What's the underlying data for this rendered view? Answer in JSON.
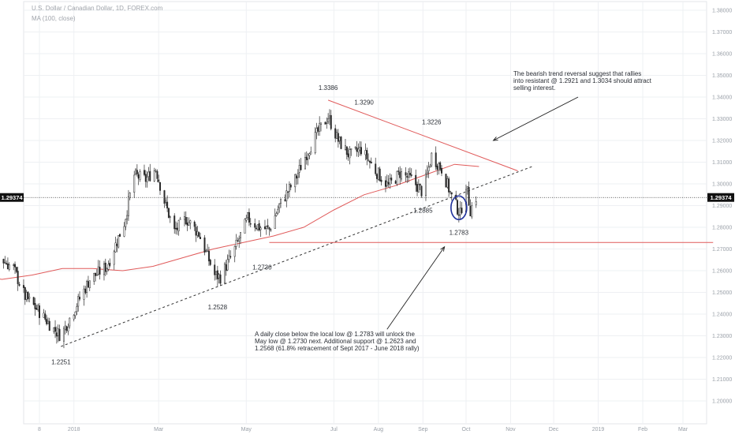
{
  "legend": {
    "symbol_line": "U.S. Dollar / Canadian Dollar, 1D, FOREX.com",
    "ma_line": "MA (100, close)"
  },
  "current_price_label": "1.29374",
  "annotations": {
    "top_note": "The bearish trend reversal suggest that rallies\ninto resistant @ 1.2921 and 1.3034 should attract\nselling interest.",
    "bottom_note": "A daily close below the local low @ 1.2783 will unlock the\nMay low @ 1.2730 next. Additional support @ 1.2623 and\n1.2568 (61.8% retracement of Sept 2017 - June 2018 rally)",
    "levels": [
      {
        "text": "1.3386",
        "date": "2018-06-27",
        "price": 1.3432
      },
      {
        "text": "1.3290",
        "date": "2018-07-22",
        "price": 1.3365
      },
      {
        "text": "1.3226",
        "date": "2018-09-07",
        "price": 1.3275
      },
      {
        "text": "1.2885",
        "date": "2018-09-01",
        "price": 1.2868
      },
      {
        "text": "1.2783",
        "date": "2018-09-26",
        "price": 1.2765
      },
      {
        "text": "1.2730",
        "date": "2018-05-12",
        "price": 1.2605
      },
      {
        "text": "1.2528",
        "date": "2018-04-11",
        "price": 1.2422
      },
      {
        "text": "1.2251",
        "date": "2017-12-23",
        "price": 1.217
      }
    ]
  },
  "colors": {
    "candle": "#2b2b2b",
    "ma": "#e05a5a",
    "resistance_line": "#e05a5a",
    "support_line": "#333333",
    "circle": "#1e2f9c",
    "grid": "#eef0f3",
    "axis_text": "#9aa0a8",
    "price_label_bg": "#111111"
  },
  "chart_data": {
    "type": "candlestick",
    "symbol": "U.S. Dollar / Canadian Dollar, 1D, FOREX.com",
    "indicator": "MA (100, close)",
    "y_axis": {
      "position": "right",
      "ylim": [
        1.1948,
        1.385
      ],
      "tick_labels": [
        "1.38000",
        "1.37000",
        "1.36000",
        "1.35000",
        "1.34000",
        "1.33000",
        "1.32000",
        "1.31000",
        "1.30000",
        "1.29000",
        "1.28000",
        "1.27000",
        "1.26000",
        "1.25000",
        "1.24000",
        "1.23000",
        "1.22000",
        "1.21000",
        "1.20000"
      ]
    },
    "x_axis": {
      "position": "bottom",
      "tick_labels": [
        {
          "label": "8",
          "date": "2017-12-08"
        },
        {
          "label": "2018",
          "date": "2018-01-01"
        },
        {
          "label": "Mar",
          "date": "2018-03-01"
        },
        {
          "label": "May",
          "date": "2018-05-01"
        },
        {
          "label": "Jul",
          "date": "2018-07-01"
        },
        {
          "label": "Aug",
          "date": "2018-08-01"
        },
        {
          "label": "Sep",
          "date": "2018-09-01"
        },
        {
          "label": "Oct",
          "date": "2018-10-01"
        },
        {
          "label": "Nov",
          "date": "2018-11-01"
        },
        {
          "label": "Dec",
          "date": "2018-12-01"
        },
        {
          "label": "2019",
          "date": "2019-01-01"
        },
        {
          "label": "Feb",
          "date": "2019-02-01"
        },
        {
          "label": "Mar",
          "date": "2019-03-01"
        }
      ]
    },
    "close_path": [
      [
        "2017-08-24",
        1.289
      ],
      [
        "2017-09-05",
        1.279
      ],
      [
        "2017-09-18",
        1.276
      ],
      [
        "2017-10-02",
        1.276
      ],
      [
        "2017-10-13",
        1.284
      ],
      [
        "2017-10-27",
        1.278
      ],
      [
        "2017-11-08",
        1.267
      ],
      [
        "2017-11-20",
        1.261
      ],
      [
        "2017-11-28",
        1.248
      ],
      [
        "2017-12-08",
        1.241
      ],
      [
        "2017-12-18",
        1.233
      ],
      [
        "2017-12-23",
        1.23
      ],
      [
        "2018-01-01",
        1.242
      ],
      [
        "2018-01-12",
        1.256
      ],
      [
        "2018-01-24",
        1.262
      ],
      [
        "2018-02-05",
        1.282
      ],
      [
        "2018-02-12",
        1.304
      ],
      [
        "2018-02-20",
        1.302
      ],
      [
        "2018-02-27",
        1.307
      ],
      [
        "2018-03-05",
        1.292
      ],
      [
        "2018-03-12",
        1.278
      ],
      [
        "2018-03-20",
        1.284
      ],
      [
        "2018-03-29",
        1.277
      ],
      [
        "2018-04-09",
        1.258
      ],
      [
        "2018-04-13",
        1.257
      ],
      [
        "2018-04-23",
        1.27
      ],
      [
        "2018-05-02",
        1.284
      ],
      [
        "2018-05-10",
        1.28
      ],
      [
        "2018-05-17",
        1.279
      ],
      [
        "2018-05-24",
        1.29
      ],
      [
        "2018-06-04",
        1.302
      ],
      [
        "2018-06-12",
        1.314
      ],
      [
        "2018-06-20",
        1.324
      ],
      [
        "2018-06-27",
        1.331
      ],
      [
        "2018-07-04",
        1.32
      ],
      [
        "2018-07-12",
        1.313
      ],
      [
        "2018-07-20",
        1.316
      ],
      [
        "2018-07-30",
        1.306
      ],
      [
        "2018-08-08",
        1.299
      ],
      [
        "2018-08-16",
        1.305
      ],
      [
        "2018-08-24",
        1.302
      ],
      [
        "2018-09-01",
        1.296
      ],
      [
        "2018-09-07",
        1.313
      ],
      [
        "2018-09-14",
        1.307
      ],
      [
        "2018-09-21",
        1.294
      ],
      [
        "2018-09-27",
        1.286
      ],
      [
        "2018-10-01",
        1.3
      ],
      [
        "2018-10-04",
        1.288
      ],
      [
        "2018-10-08",
        1.2937
      ]
    ],
    "ma_100": [
      [
        "2017-08-24",
        1.271
      ],
      [
        "2017-09-10",
        1.267
      ],
      [
        "2017-10-01",
        1.261
      ],
      [
        "2017-10-22",
        1.258
      ],
      [
        "2017-11-12",
        1.256
      ],
      [
        "2017-12-03",
        1.258
      ],
      [
        "2017-12-24",
        1.261
      ],
      [
        "2018-01-14",
        1.261
      ],
      [
        "2018-02-04",
        1.26
      ],
      [
        "2018-02-25",
        1.262
      ],
      [
        "2018-03-18",
        1.266
      ],
      [
        "2018-04-08",
        1.27
      ],
      [
        "2018-04-29",
        1.273
      ],
      [
        "2018-05-20",
        1.276
      ],
      [
        "2018-06-10",
        1.28
      ],
      [
        "2018-07-01",
        1.288
      ],
      [
        "2018-07-22",
        1.295
      ],
      [
        "2018-08-12",
        1.299
      ],
      [
        "2018-09-02",
        1.304
      ],
      [
        "2018-09-23",
        1.309
      ],
      [
        "2018-10-10",
        1.308
      ]
    ],
    "trendlines": [
      {
        "name": "resistance",
        "style": "solid",
        "from": [
          "2018-06-27",
          1.3386
        ],
        "to": [
          "2018-11-06",
          1.306
        ]
      },
      {
        "name": "support",
        "style": "dashed",
        "from": [
          "2017-12-23",
          1.2251
        ],
        "to": [
          "2018-11-16",
          1.308
        ]
      },
      {
        "name": "support-level",
        "style": "solid",
        "from": [
          "2018-05-17",
          1.273
        ],
        "to": [
          "2019-03-22",
          1.273
        ]
      }
    ],
    "current_price": 1.29374,
    "highlight_circle": {
      "date": "2018-09-26",
      "price": 1.289
    },
    "arrows": [
      {
        "from": [
          "2018-12-18",
          1.34
        ],
        "to": [
          "2018-10-20",
          1.32
        ]
      },
      {
        "from": [
          "2018-08-07",
          1.233
        ],
        "to": [
          "2018-09-16",
          1.271
        ]
      }
    ]
  }
}
